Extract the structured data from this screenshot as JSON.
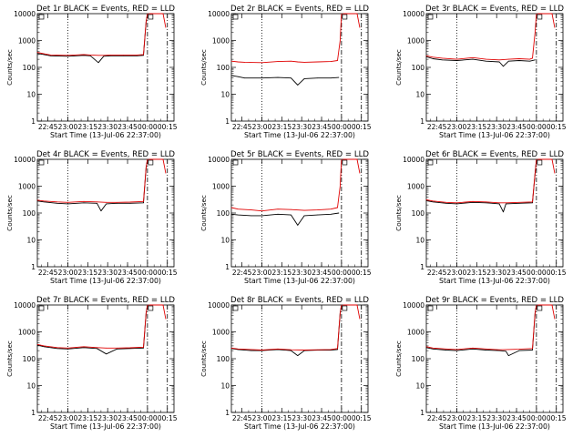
{
  "figure": {
    "start_label": "Start Time (13-Jul-06 22:37:00)",
    "ylabel": "Counts/sec",
    "x_ticks": [
      "22:45",
      "23:00",
      "23:15",
      "23:30",
      "23:45",
      "00:00",
      "00:15"
    ],
    "y_ticks": [
      "1",
      "10",
      "100",
      "1000",
      "10000"
    ],
    "colors": {
      "events": "#000000",
      "lld": "#e00000",
      "axes": "#000000"
    }
  },
  "chart_data": [
    {
      "type": "line",
      "title": "Det 1r BLACK = Events, RED = LLD",
      "xlabel": "Start Time (13-Jul-06 22:37:00)",
      "ylabel": "Counts/sec",
      "ylim": [
        1,
        10000
      ],
      "xlim_minutes": [
        0,
        103
      ],
      "yscale": "log",
      "markers_minutes": {
        "dotted": 23,
        "dashdot": [
          83,
          98
        ]
      },
      "saturation_label": "saturated",
      "series": [
        {
          "name": "Events",
          "color": "#000000",
          "x": [
            0,
            5,
            10,
            23,
            35,
            40,
            46,
            50,
            55,
            65,
            75,
            80,
            82,
            83
          ],
          "y": [
            330,
            300,
            270,
            260,
            280,
            270,
            150,
            260,
            270,
            270,
            270,
            280,
            5000,
            10000
          ]
        },
        {
          "name": "LLD",
          "color": "#e00000",
          "x": [
            0,
            5,
            10,
            23,
            35,
            40,
            46,
            50,
            55,
            65,
            75,
            80,
            82,
            83
          ],
          "y": [
            360,
            320,
            290,
            280,
            300,
            290,
            280,
            280,
            290,
            290,
            290,
            300,
            5000,
            10000
          ]
        }
      ]
    },
    {
      "type": "line",
      "title": "Det 2r BLACK = Events, RED = LLD",
      "xlabel": "Start Time (13-Jul-06 22:37:00)",
      "ylabel": "Counts/sec",
      "ylim": [
        1,
        10000
      ],
      "xlim_minutes": [
        0,
        103
      ],
      "yscale": "log",
      "markers_minutes": {
        "dotted": 23,
        "dashdot": [
          83,
          98
        ]
      },
      "saturation_label": "saturated",
      "series": [
        {
          "name": "Events",
          "color": "#000000",
          "x": [
            0,
            5,
            10,
            23,
            35,
            45,
            50,
            55,
            65,
            75,
            81
          ],
          "y": [
            50,
            45,
            40,
            40,
            42,
            40,
            22,
            38,
            40,
            40,
            42
          ]
        },
        {
          "name": "LLD",
          "color": "#e00000",
          "x": [
            0,
            5,
            10,
            23,
            35,
            45,
            50,
            55,
            65,
            75,
            80,
            82,
            83
          ],
          "y": [
            170,
            160,
            155,
            150,
            165,
            170,
            160,
            155,
            160,
            165,
            180,
            1000,
            10000
          ]
        }
      ]
    },
    {
      "type": "line",
      "title": "Det 3r BLACK = Events, RED = LLD",
      "xlabel": "Start Time (13-Jul-06 22:37:00)",
      "ylabel": "Counts/sec",
      "ylim": [
        1,
        10000
      ],
      "xlim_minutes": [
        0,
        103
      ],
      "yscale": "log",
      "markers_minutes": {
        "dotted": 23,
        "dashdot": [
          83,
          98
        ]
      },
      "saturation_label": "saturated",
      "series": [
        {
          "name": "Events",
          "color": "#000000",
          "x": [
            0,
            5,
            12,
            23,
            35,
            45,
            55,
            58,
            62,
            70,
            78,
            82
          ],
          "y": [
            250,
            210,
            190,
            180,
            200,
            170,
            160,
            110,
            170,
            180,
            170,
            190
          ]
        },
        {
          "name": "LLD",
          "color": "#e00000",
          "x": [
            0,
            5,
            12,
            23,
            35,
            45,
            55,
            62,
            70,
            78,
            80,
            82,
            83
          ],
          "y": [
            270,
            240,
            220,
            200,
            230,
            200,
            190,
            200,
            210,
            200,
            220,
            2000,
            10000
          ]
        }
      ]
    },
    {
      "type": "line",
      "title": "Det 4r BLACK = Events, RED = LLD",
      "xlabel": "Start Time (13-Jul-06 22:37:00)",
      "ylabel": "Counts/sec",
      "ylim": [
        1,
        10000
      ],
      "xlim_minutes": [
        0,
        103
      ],
      "yscale": "log",
      "markers_minutes": {
        "dotted": 23,
        "dashdot": [
          83,
          98
        ]
      },
      "saturation_label": "saturated",
      "series": [
        {
          "name": "Events",
          "color": "#000000",
          "x": [
            0,
            5,
            15,
            23,
            35,
            45,
            48,
            52,
            60,
            70,
            80,
            82,
            83
          ],
          "y": [
            280,
            260,
            230,
            220,
            240,
            230,
            120,
            220,
            230,
            230,
            240,
            5000,
            10000
          ]
        },
        {
          "name": "LLD",
          "color": "#e00000",
          "x": [
            0,
            5,
            15,
            23,
            35,
            45,
            52,
            60,
            70,
            80,
            82,
            83
          ],
          "y": [
            300,
            280,
            260,
            250,
            270,
            260,
            250,
            250,
            255,
            270,
            5000,
            10000
          ]
        }
      ]
    },
    {
      "type": "line",
      "title": "Det 5r BLACK = Events, RED = LLD",
      "xlabel": "Start Time (13-Jul-06 22:37:00)",
      "ylabel": "Counts/sec",
      "ylim": [
        1,
        10000
      ],
      "xlim_minutes": [
        0,
        103
      ],
      "yscale": "log",
      "markers_minutes": {
        "dotted": 23,
        "dashdot": [
          83,
          98
        ]
      },
      "saturation_label": "saturated",
      "series": [
        {
          "name": "Events",
          "color": "#000000",
          "x": [
            0,
            5,
            15,
            23,
            35,
            45,
            50,
            55,
            65,
            75,
            81
          ],
          "y": [
            90,
            85,
            80,
            80,
            90,
            85,
            35,
            80,
            85,
            90,
            100
          ]
        },
        {
          "name": "LLD",
          "color": "#e00000",
          "x": [
            0,
            5,
            15,
            23,
            35,
            45,
            55,
            65,
            75,
            80,
            82,
            83
          ],
          "y": [
            160,
            140,
            130,
            120,
            140,
            135,
            125,
            130,
            140,
            160,
            1000,
            10000
          ]
        }
      ]
    },
    {
      "type": "line",
      "title": "Det 6r BLACK = Events, RED = LLD",
      "xlabel": "Start Time (13-Jul-06 22:37:00)",
      "ylabel": "Counts/sec",
      "ylim": [
        1,
        10000
      ],
      "xlim_minutes": [
        0,
        103
      ],
      "yscale": "log",
      "markers_minutes": {
        "dotted": 23,
        "dashdot": [
          83,
          98
        ]
      },
      "saturation_label": "saturated",
      "series": [
        {
          "name": "Events",
          "color": "#000000",
          "x": [
            0,
            5,
            15,
            23,
            35,
            45,
            50,
            55,
            58,
            60,
            70,
            80,
            82,
            83
          ],
          "y": [
            290,
            260,
            230,
            220,
            250,
            240,
            230,
            220,
            110,
            220,
            230,
            240,
            3000,
            10000
          ]
        },
        {
          "name": "LLD",
          "color": "#e00000",
          "x": [
            0,
            5,
            15,
            23,
            35,
            45,
            55,
            60,
            70,
            80,
            82,
            83
          ],
          "y": [
            310,
            280,
            250,
            240,
            270,
            260,
            240,
            240,
            250,
            260,
            3000,
            10000
          ]
        }
      ]
    },
    {
      "type": "line",
      "title": "Det 7r BLACK = Events, RED = LLD",
      "xlabel": "Start Time (13-Jul-06 22:37:00)",
      "ylabel": "Counts/sec",
      "ylim": [
        1,
        10000
      ],
      "xlim_minutes": [
        0,
        103
      ],
      "yscale": "log",
      "markers_minutes": {
        "dotted": 23,
        "dashdot": [
          83,
          98
        ]
      },
      "saturation_label": "saturated",
      "series": [
        {
          "name": "Events",
          "color": "#000000",
          "x": [
            0,
            5,
            15,
            23,
            35,
            45,
            52,
            60,
            70,
            80,
            82,
            83
          ],
          "y": [
            320,
            280,
            240,
            230,
            260,
            240,
            150,
            230,
            240,
            250,
            5000,
            10000
          ]
        },
        {
          "name": "LLD",
          "color": "#e00000",
          "x": [
            0,
            5,
            15,
            23,
            35,
            45,
            52,
            60,
            70,
            80,
            82,
            83
          ],
          "y": [
            340,
            300,
            260,
            250,
            280,
            260,
            250,
            250,
            255,
            270,
            5000,
            10000
          ]
        }
      ]
    },
    {
      "type": "line",
      "title": "Det 8r BLACK = Events, RED = LLD",
      "xlabel": "Start Time (13-Jul-06 22:37:00)",
      "ylabel": "Counts/sec",
      "ylim": [
        1,
        10000
      ],
      "xlim_minutes": [
        0,
        103
      ],
      "yscale": "log",
      "markers_minutes": {
        "dotted": 23,
        "dashdot": [
          83,
          98
        ]
      },
      "saturation_label": "saturated",
      "series": [
        {
          "name": "Events",
          "color": "#000000",
          "x": [
            0,
            5,
            15,
            23,
            35,
            45,
            50,
            55,
            65,
            75,
            80,
            82,
            83
          ],
          "y": [
            240,
            220,
            200,
            200,
            220,
            200,
            130,
            200,
            210,
            210,
            220,
            5000,
            10000
          ]
        },
        {
          "name": "LLD",
          "color": "#e00000",
          "x": [
            0,
            5,
            15,
            23,
            35,
            45,
            55,
            65,
            75,
            80,
            82,
            83
          ],
          "y": [
            250,
            230,
            220,
            210,
            230,
            215,
            210,
            215,
            220,
            240,
            5000,
            10000
          ]
        }
      ]
    },
    {
      "type": "line",
      "title": "Det 9r BLACK = Events, RED = LLD",
      "xlabel": "Start Time (13-Jul-06 22:37:00)",
      "ylabel": "Counts/sec",
      "ylim": [
        1,
        10000
      ],
      "xlim_minutes": [
        0,
        103
      ],
      "yscale": "log",
      "markers_minutes": {
        "dotted": 23,
        "dashdot": [
          83,
          98
        ]
      },
      "saturation_label": "saturated",
      "series": [
        {
          "name": "Events",
          "color": "#000000",
          "x": [
            0,
            5,
            15,
            23,
            35,
            45,
            55,
            60,
            62,
            70,
            80,
            82,
            83
          ],
          "y": [
            260,
            230,
            210,
            200,
            230,
            210,
            200,
            190,
            130,
            200,
            210,
            5000,
            10000
          ]
        },
        {
          "name": "LLD",
          "color": "#e00000",
          "x": [
            0,
            5,
            15,
            23,
            35,
            45,
            55,
            62,
            70,
            80,
            82,
            83
          ],
          "y": [
            280,
            250,
            230,
            220,
            250,
            230,
            215,
            220,
            225,
            240,
            5000,
            10000
          ]
        }
      ]
    }
  ]
}
